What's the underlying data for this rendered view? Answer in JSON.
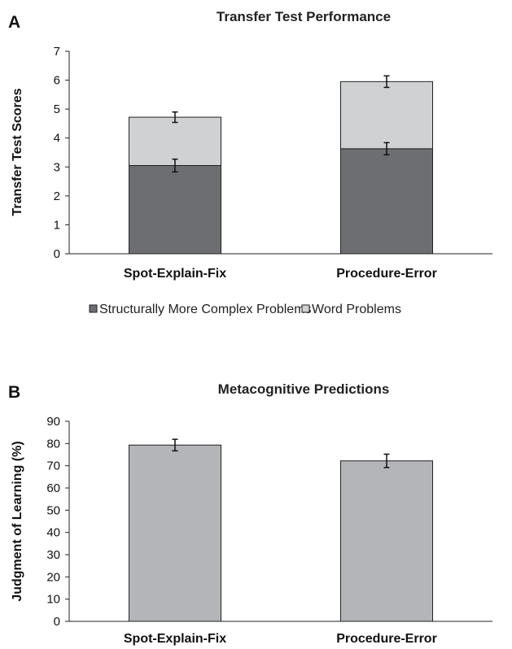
{
  "chart_data": [
    {
      "panel": "A",
      "type": "bar",
      "stacked": true,
      "title": "Transfer Test Performance",
      "ylabel": "Transfer Test Scores",
      "xlabel": "",
      "ylim": [
        0,
        7
      ],
      "yticks": [
        0,
        1,
        2,
        3,
        4,
        5,
        6,
        7
      ],
      "categories": [
        "Spot-Explain-Fix",
        "Procedure-Error"
      ],
      "series": [
        {
          "name": "Structurally More Complex Problems",
          "values": [
            3.05,
            3.63
          ],
          "errors": [
            0.22,
            0.21
          ],
          "color": "#6d6e71"
        },
        {
          "name": "Word Problems",
          "values": [
            1.67,
            2.32
          ],
          "errors": [
            0.18,
            0.2
          ],
          "color": "#d0d1d3"
        }
      ],
      "legend_position": "bottom",
      "grid": false
    },
    {
      "panel": "B",
      "type": "bar",
      "title": "Metacognitive Predictions",
      "ylabel": "Judgment of Learning (%)",
      "xlabel": "",
      "ylim": [
        0,
        90
      ],
      "yticks": [
        0,
        10,
        20,
        30,
        40,
        50,
        60,
        70,
        80,
        90
      ],
      "categories": [
        "Spot-Explain-Fix",
        "Procedure-Error"
      ],
      "values": [
        79.3,
        72.2
      ],
      "errors": [
        2.6,
        3.0
      ],
      "color": "#b4b5b8",
      "grid": false
    }
  ]
}
